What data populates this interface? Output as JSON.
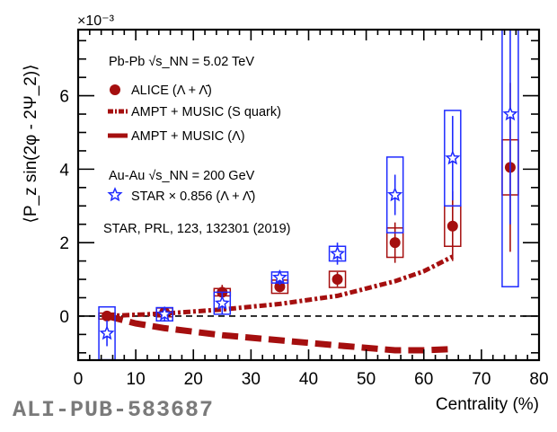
{
  "chart_data": {
    "type": "scatter",
    "xlabel": "Centrality (%)",
    "ylabel": "⟨P_z sin(2φ - 2Ψ_2)⟩",
    "y_multiplier": "×10⁻³",
    "xlim": [
      0,
      80
    ],
    "ylim": [
      -1.2,
      7.8
    ],
    "x_ticks": [
      0,
      10,
      20,
      30,
      40,
      50,
      60,
      70,
      80
    ],
    "y_ticks": [
      0,
      2,
      4,
      6
    ],
    "reference_line": 0,
    "legend": {
      "placement": "top-left",
      "header_pbpb": "Pb-Pb √s_NN = 5.02 TeV",
      "header_auau": "Au-Au √s_NN = 200 GeV",
      "citation": "STAR, PRL, 123, 132301 (2019)",
      "entries": [
        {
          "label": "ALICE (Λ + Λ̄)",
          "marker": "circle"
        },
        {
          "label": "AMPT + MUSIC (S quark)",
          "marker": "dash-dot-line"
        },
        {
          "label": "AMPT + MUSIC (Λ)",
          "marker": "dashed-line"
        },
        {
          "label": "STAR × 0.856 (Λ + Λ̄)",
          "marker": "open-star"
        }
      ]
    },
    "series": [
      {
        "name": "ALICE (Λ + Λ̄)",
        "color": "#a50f0f",
        "x": [
          5,
          15,
          25,
          35,
          45,
          55,
          65,
          75
        ],
        "y": [
          0.0,
          0.1,
          0.65,
          0.8,
          1.0,
          2.0,
          2.45,
          4.05
        ],
        "stat_err": [
          0.1,
          0.15,
          0.2,
          0.15,
          0.2,
          0.55,
          0.95,
          2.3
        ],
        "sys_err": [
          0.08,
          0.12,
          0.1,
          0.18,
          0.22,
          0.4,
          0.55,
          0.75
        ]
      },
      {
        "name": "STAR × 0.856 (Λ + Λ̄)",
        "color": "#1f2bff",
        "x": [
          5,
          15,
          25,
          35,
          45,
          55,
          65,
          75
        ],
        "y": [
          -0.47,
          0.05,
          0.35,
          1.05,
          1.7,
          3.3,
          4.3,
          5.5
        ],
        "stat_err": [
          0.35,
          0.2,
          0.3,
          0.2,
          0.3,
          0.55,
          1.15,
          3.0
        ],
        "sys_err": [
          0.72,
          0.18,
          0.3,
          0.15,
          0.2,
          1.03,
          1.3,
          4.7
        ]
      },
      {
        "name": "AMPT + MUSIC (S quark)",
        "color": "#a50f0f",
        "style": "dash-dot",
        "x": [
          5,
          15,
          25,
          35,
          45,
          55,
          60,
          65
        ],
        "y": [
          0.0,
          0.07,
          0.18,
          0.33,
          0.55,
          0.95,
          1.22,
          1.62
        ]
      },
      {
        "name": "AMPT + MUSIC (Λ)",
        "color": "#a50f0f",
        "style": "dashed",
        "x": [
          5,
          10,
          15,
          25,
          35,
          45,
          55,
          60,
          65
        ],
        "y": [
          0.0,
          -0.2,
          -0.33,
          -0.52,
          -0.66,
          -0.8,
          -0.93,
          -0.93,
          -0.9
        ]
      }
    ]
  },
  "watermark": "ALI-PUB-583687"
}
